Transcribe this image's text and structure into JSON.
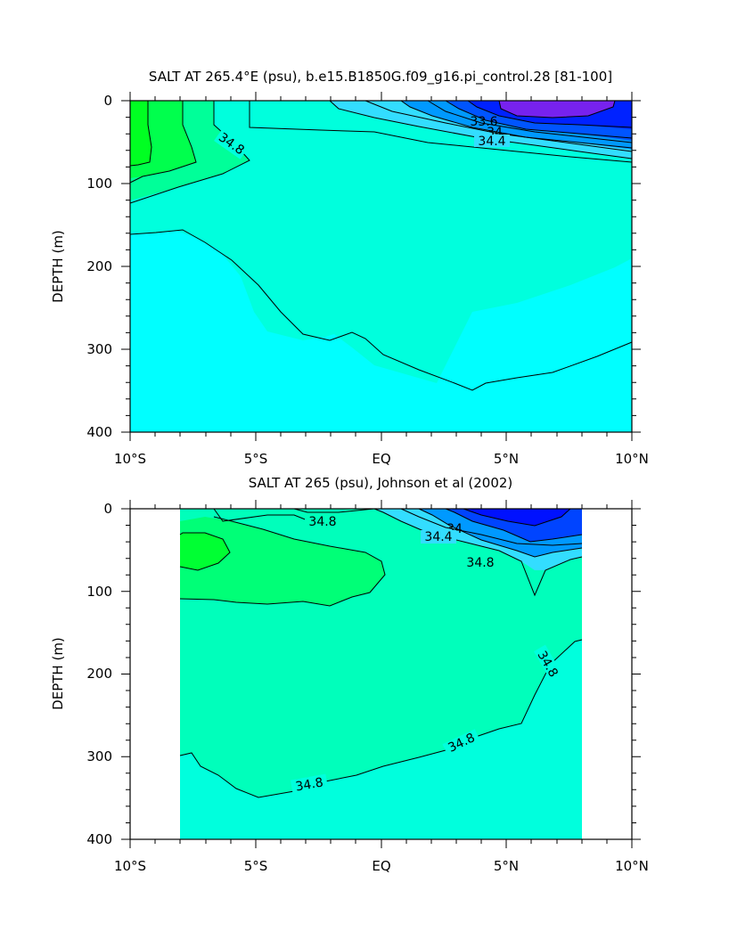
{
  "chart_data": [
    {
      "type": "contour",
      "title": "SALT AT 265.4°E (psu), b.e15.B1850G.f09_g16.pi_control.28 [81-100]",
      "xlabel": "",
      "ylabel": "DEPTH (m)",
      "x_range": [
        -10,
        10
      ],
      "y_range": [
        0,
        400
      ],
      "x_tick_labels": [
        "10°S",
        "5°S",
        "EQ",
        "5°N",
        "10°N"
      ],
      "x_tick_values": [
        -10,
        -5,
        0,
        5,
        10
      ],
      "y_tick_labels": [
        "0",
        "100",
        "200",
        "300",
        "400"
      ],
      "y_tick_values": [
        0,
        100,
        200,
        300,
        400
      ],
      "contour_labels": [
        "34.8",
        "33.6",
        "34",
        "34.4"
      ],
      "colors": {
        "background": "#00ffff",
        "mid": "#00ffdd",
        "light_green": "#00ff99",
        "green": "#00ff4d",
        "bright_green": "#00ff22",
        "cyan_light": "#33ddff",
        "blue_light": "#0099ff",
        "blue": "#0055ff",
        "blue_dark": "#0022ff",
        "purple": "#7722ee"
      }
    },
    {
      "type": "contour",
      "title": "SALT AT 265 (psu), Johnson et al (2002)",
      "xlabel": "",
      "ylabel": "DEPTH (m)",
      "x_range": [
        -10,
        10
      ],
      "y_range": [
        0,
        400
      ],
      "data_x_range": [
        -8,
        8
      ],
      "x_tick_labels": [
        "10°S",
        "5°S",
        "EQ",
        "5°N",
        "10°N"
      ],
      "x_tick_values": [
        -10,
        -5,
        0,
        5,
        10
      ],
      "y_tick_labels": [
        "0",
        "100",
        "200",
        "300",
        "400"
      ],
      "y_tick_values": [
        0,
        100,
        200,
        300,
        400
      ],
      "contour_labels": [
        "34.8",
        "34",
        "34.4",
        "34.8",
        "34.8",
        "34.8",
        "34.8"
      ],
      "colors": {
        "background": "#00ffdd",
        "mid": "#00ffbb",
        "green": "#00ff77",
        "bright_green": "#00ff33",
        "cyan_light": "#33ddff",
        "blue_light": "#0099ff",
        "blue": "#0044ff",
        "blue_dark": "#0011ff"
      }
    }
  ]
}
